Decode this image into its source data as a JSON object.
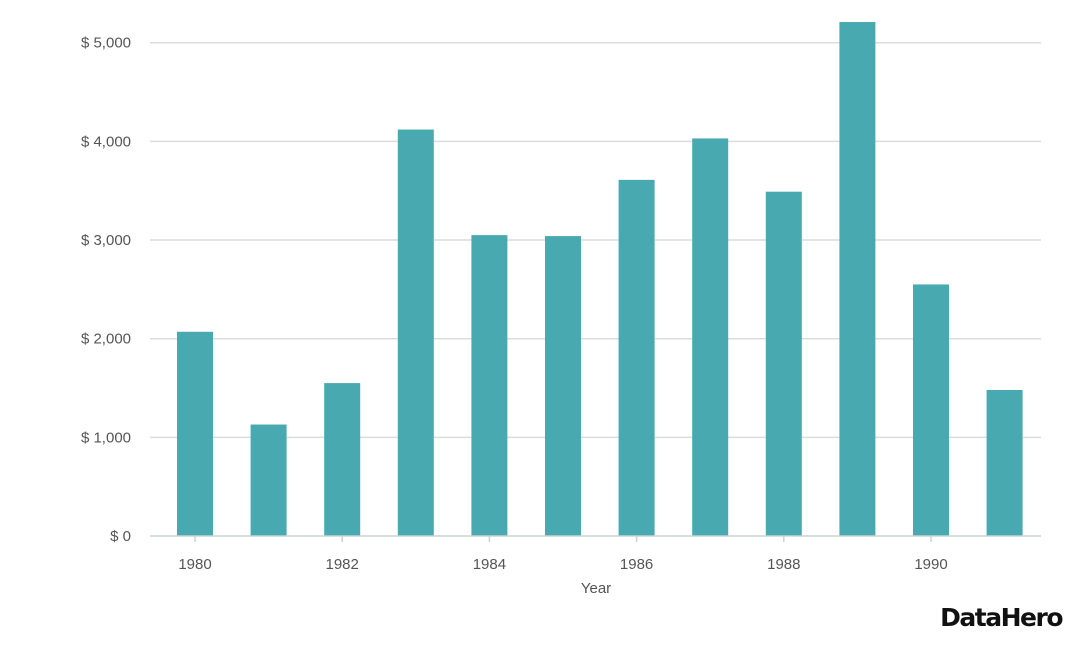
{
  "chart_data": {
    "type": "bar",
    "categories": [
      "1980",
      "1981",
      "1982",
      "1983",
      "1984",
      "1985",
      "1986",
      "1987",
      "1988",
      "1989",
      "1990",
      "1991"
    ],
    "values": [
      2070,
      1130,
      1550,
      4120,
      3050,
      3040,
      3610,
      4030,
      3490,
      5210,
      2550,
      1480
    ],
    "xtick_labels": [
      "1980",
      "1982",
      "1984",
      "1986",
      "1988",
      "1990"
    ],
    "ytick_values": [
      0,
      1000,
      2000,
      3000,
      4000,
      5000
    ],
    "ytick_labels": [
      "$ 0",
      "$ 1,000",
      "$ 2,000",
      "$ 3,000",
      "$ 4,000",
      "$ 5,000"
    ],
    "xlabel": "Year",
    "ylabel": "",
    "ylim": [
      0,
      5200
    ],
    "grid": true,
    "legend": "none",
    "colors": {
      "bar": "#49a9b0",
      "grid": "#dcdcdc",
      "text": "#555555"
    }
  },
  "branding": {
    "logo_text": "DataHero"
  }
}
